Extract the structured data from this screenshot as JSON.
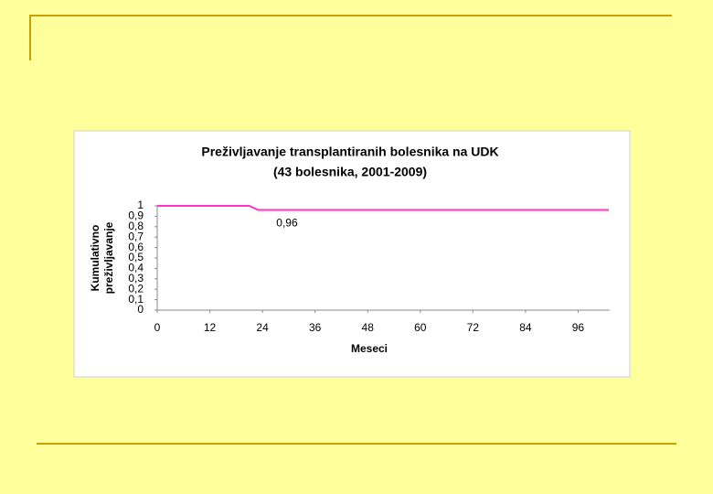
{
  "chart_data": {
    "type": "line",
    "title": [
      "Preživljavanje transplantiranih bolesnika na UDK",
      "(43 bolesnika, 2001-2009)"
    ],
    "x_label": "Meseci",
    "y_label": [
      "Kumulativno",
      "preživljavanje"
    ],
    "x": [
      0,
      21,
      23,
      103
    ],
    "series": [
      {
        "color": "#ff33cc",
        "values": [
          1,
          1,
          0.96,
          0.96
        ],
        "value_labels": [
          null,
          null,
          "0,96",
          null
        ]
      }
    ],
    "xlim": [
      0,
      103
    ],
    "xticks": [
      0,
      12,
      24,
      36,
      48,
      60,
      72,
      84,
      96
    ],
    "ylim": [
      0,
      1
    ],
    "yticks": [
      0,
      {
        "value": 0.1,
        "label": "0,1"
      },
      {
        "value": 0.2,
        "label": "0,2"
      },
      {
        "value": 0.3,
        "label": "0,3"
      },
      {
        "value": 0.4,
        "label": "0,4"
      },
      {
        "value": 0.5,
        "label": "0,5"
      },
      {
        "value": 0.6,
        "label": "0,6"
      },
      {
        "value": 0.7,
        "label": "0,7"
      },
      {
        "value": 0.8,
        "label": "0,8"
      },
      {
        "value": 0.9,
        "label": "0,9"
      },
      1
    ],
    "grid": false
  }
}
